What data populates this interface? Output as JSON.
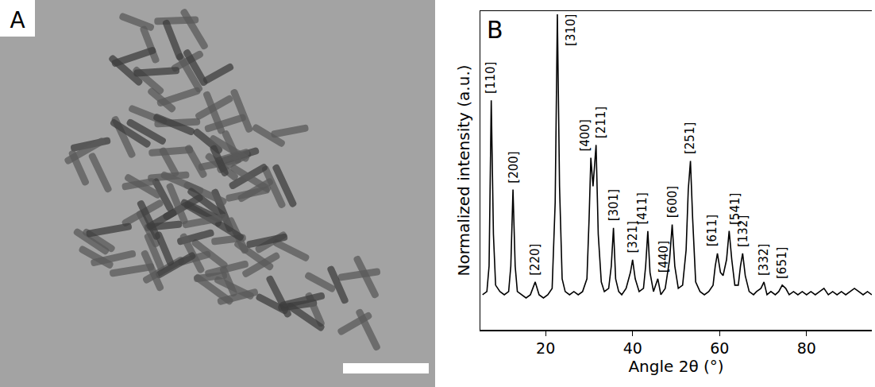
{
  "panel_a": {
    "label": "A"
  },
  "chart_data": {
    "type": "line",
    "panel_label": "B",
    "x_label": "Angle 2θ (°)",
    "y_label": "Normalized intensity (a.u.)",
    "color": "#000000",
    "grid": false,
    "tick_labels": "x",
    "xlim": [
      5,
      95
    ],
    "xticks": [
      20,
      40,
      60,
      80
    ],
    "ylim": [
      0,
      1
    ],
    "x": [
      5.5,
      6.5,
      7.0,
      7.5,
      8.0,
      8.5,
      9.5,
      10.5,
      11.5,
      12.0,
      12.5,
      13.0,
      13.5,
      14.5,
      15.5,
      16.5,
      17.6,
      18.5,
      19.5,
      20.5,
      21.5,
      22.2,
      22.7,
      23.2,
      23.8,
      24.5,
      25.5,
      26.5,
      27.5,
      28.5,
      29.5,
      30.0,
      30.4,
      30.9,
      31.6,
      32.1,
      32.8,
      33.5,
      34.5,
      35.1,
      35.6,
      36.1,
      36.8,
      37.5,
      38.5,
      39.5,
      40.0,
      40.6,
      41.5,
      42.5,
      43.0,
      43.5,
      44.0,
      44.8,
      45.8,
      46.5,
      47.5,
      48.5,
      49.1,
      49.7,
      50.5,
      51.5,
      52.3,
      52.8,
      53.3,
      53.8,
      54.5,
      55.5,
      56.5,
      57.5,
      58.5,
      59.0,
      59.5,
      60.2,
      60.8,
      61.6,
      62.2,
      62.8,
      63.5,
      64.3,
      64.8,
      65.3,
      65.9,
      66.8,
      67.8,
      68.5,
      69.5,
      70.2,
      70.9,
      71.8,
      72.8,
      73.6,
      74.4,
      75.2,
      76.0,
      77.0,
      78.0,
      79.0,
      80.0,
      81.0,
      82.0,
      83.0,
      84.0,
      85.0,
      86.0,
      87.0,
      88.0,
      89.0,
      90.0,
      91.0,
      92.0,
      93.0,
      94.0,
      95.0
    ],
    "values": [
      0.11,
      0.12,
      0.2,
      0.72,
      0.3,
      0.14,
      0.12,
      0.11,
      0.12,
      0.2,
      0.44,
      0.2,
      0.12,
      0.11,
      0.1,
      0.11,
      0.15,
      0.11,
      0.1,
      0.11,
      0.13,
      0.4,
      0.99,
      0.45,
      0.16,
      0.12,
      0.11,
      0.12,
      0.11,
      0.12,
      0.16,
      0.35,
      0.54,
      0.45,
      0.58,
      0.3,
      0.15,
      0.12,
      0.13,
      0.2,
      0.32,
      0.16,
      0.12,
      0.11,
      0.13,
      0.18,
      0.22,
      0.16,
      0.12,
      0.13,
      0.2,
      0.31,
      0.18,
      0.12,
      0.16,
      0.11,
      0.13,
      0.22,
      0.33,
      0.2,
      0.13,
      0.14,
      0.25,
      0.44,
      0.53,
      0.35,
      0.15,
      0.12,
      0.11,
      0.12,
      0.14,
      0.2,
      0.24,
      0.18,
      0.17,
      0.22,
      0.31,
      0.22,
      0.14,
      0.14,
      0.2,
      0.24,
      0.17,
      0.12,
      0.11,
      0.12,
      0.13,
      0.15,
      0.11,
      0.12,
      0.11,
      0.12,
      0.14,
      0.13,
      0.11,
      0.12,
      0.11,
      0.12,
      0.11,
      0.12,
      0.11,
      0.12,
      0.13,
      0.11,
      0.12,
      0.11,
      0.12,
      0.11,
      0.12,
      0.13,
      0.12,
      0.11,
      0.12,
      0.11
    ],
    "annotations": [
      {
        "text": "[110]",
        "x": 7.5,
        "y": 0.72
      },
      {
        "text": "[200]",
        "x": 12.5,
        "y": 0.44
      },
      {
        "text": "[220]",
        "x": 17.6,
        "y": 0.15
      },
      {
        "text": "[310]",
        "x": 22.7,
        "y": 0.99
      },
      {
        "text": "[400]",
        "x": 30.4,
        "y": 0.54
      },
      {
        "text": "[211]",
        "x": 31.6,
        "y": 0.58
      },
      {
        "text": "[301]",
        "x": 35.6,
        "y": 0.32
      },
      {
        "text": "[321]",
        "x": 40.0,
        "y": 0.22
      },
      {
        "text": "[411]",
        "x": 43.5,
        "y": 0.31
      },
      {
        "text": "[440]",
        "x": 45.8,
        "y": 0.16
      },
      {
        "text": "[600]",
        "x": 49.1,
        "y": 0.33
      },
      {
        "text": "[251]",
        "x": 53.3,
        "y": 0.53
      },
      {
        "text": "[611]",
        "x": 59.5,
        "y": 0.24
      },
      {
        "text": "[541]",
        "x": 62.2,
        "y": 0.31
      },
      {
        "text": "[132]",
        "x": 65.3,
        "y": 0.24
      },
      {
        "text": "[332]",
        "x": 70.2,
        "y": 0.15
      },
      {
        "text": "[651]",
        "x": 74.4,
        "y": 0.14
      }
    ]
  }
}
